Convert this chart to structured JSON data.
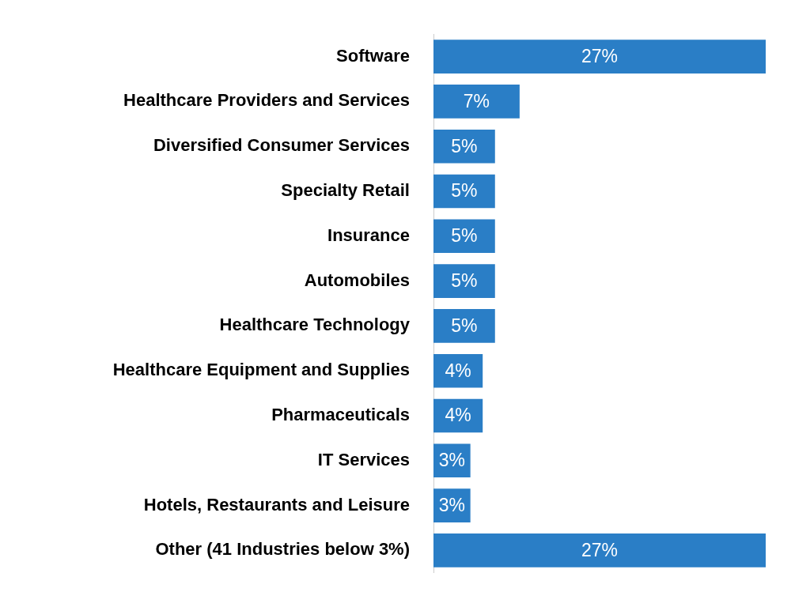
{
  "chart_data": {
    "type": "bar",
    "orientation": "horizontal",
    "categories": [
      "Software",
      "Healthcare Providers and Services",
      "Diversified Consumer Services",
      "Specialty Retail",
      "Insurance",
      "Automobiles",
      "Healthcare Technology",
      "Healthcare Equipment and Supplies",
      "Pharmaceuticals",
      "IT Services",
      "Hotels, Restaurants and Leisure",
      "Other (41 Industries below 3%)"
    ],
    "values": [
      27,
      7,
      5,
      5,
      5,
      5,
      5,
      4,
      4,
      3,
      3,
      27
    ],
    "value_labels": [
      "27%",
      "7%",
      "5%",
      "5%",
      "5%",
      "5%",
      "5%",
      "4%",
      "4%",
      "3%",
      "3%",
      "27%"
    ],
    "color": "#2a7ec6"
  }
}
